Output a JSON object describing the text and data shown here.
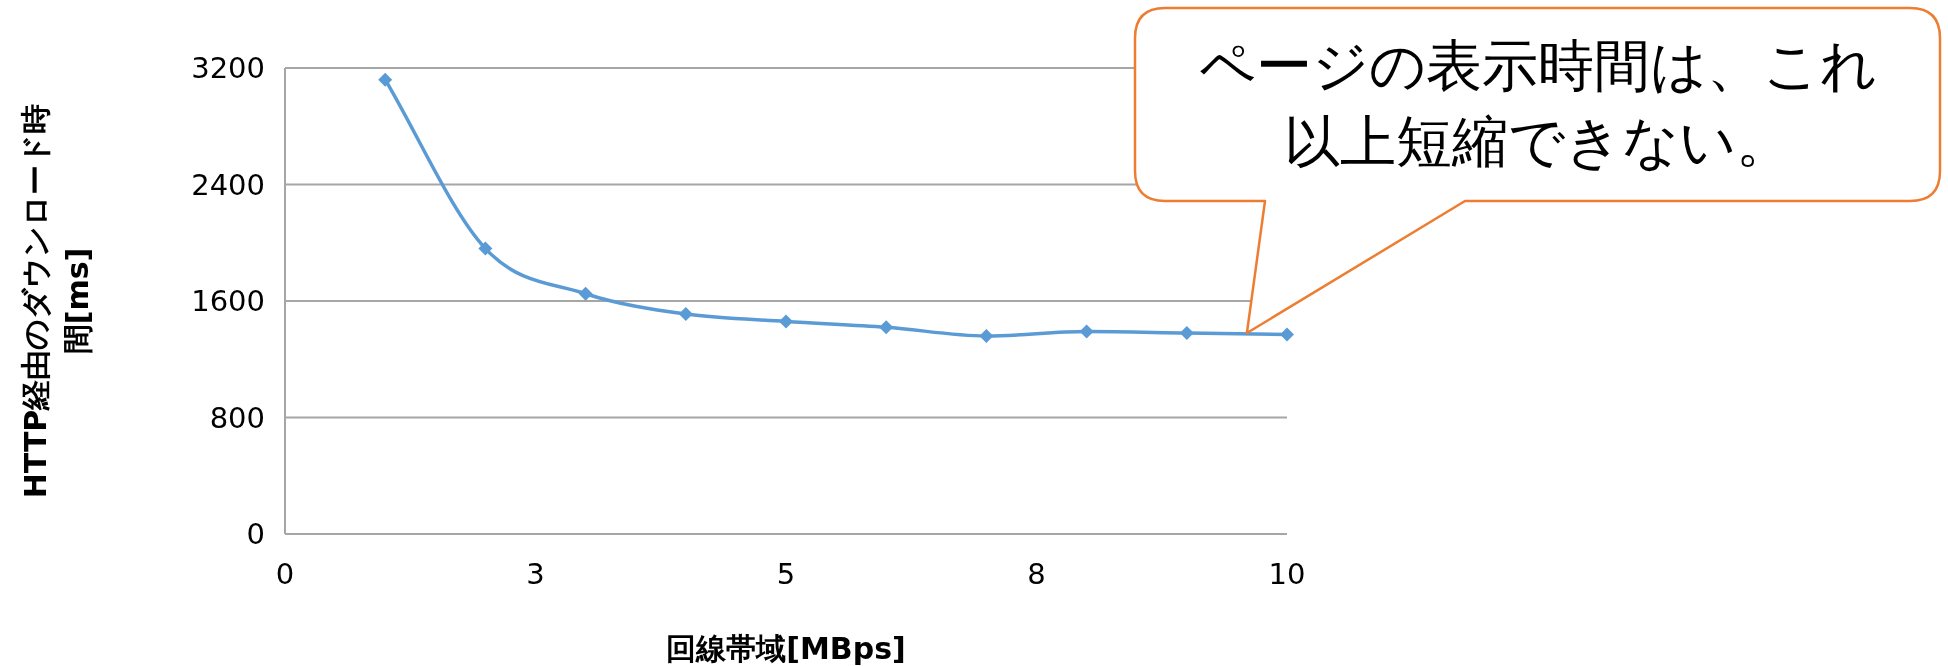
{
  "chart_data": {
    "type": "line",
    "xlabel": "回線帯域[MBps]",
    "ylabel": "HTTP経由のダウンロード時間[ms]",
    "x": [
      1,
      2,
      3,
      4,
      5,
      6,
      7,
      8,
      9,
      10
    ],
    "series": [
      {
        "color": "#5b9bd5",
        "values": [
          3120,
          1960,
          1650,
          1510,
          1460,
          1420,
          1360,
          1390,
          1380,
          1370
        ]
      }
    ],
    "xlim": [
      0,
      10
    ],
    "xticks": [
      0,
      {
        "value": 2.5,
        "label": "3"
      },
      5,
      {
        "value": 7.5,
        "label": "8"
      },
      10
    ],
    "ylim": [
      0,
      3200
    ],
    "yticks": [
      0,
      800,
      1600,
      2400,
      3200
    ],
    "grid": "y",
    "marker": "diamond",
    "line_style": "solid",
    "annotations": [
      {
        "text": "ページの表示時間は、これ以上短縮できない。",
        "x": 9.6,
        "y": 1380
      }
    ]
  }
}
